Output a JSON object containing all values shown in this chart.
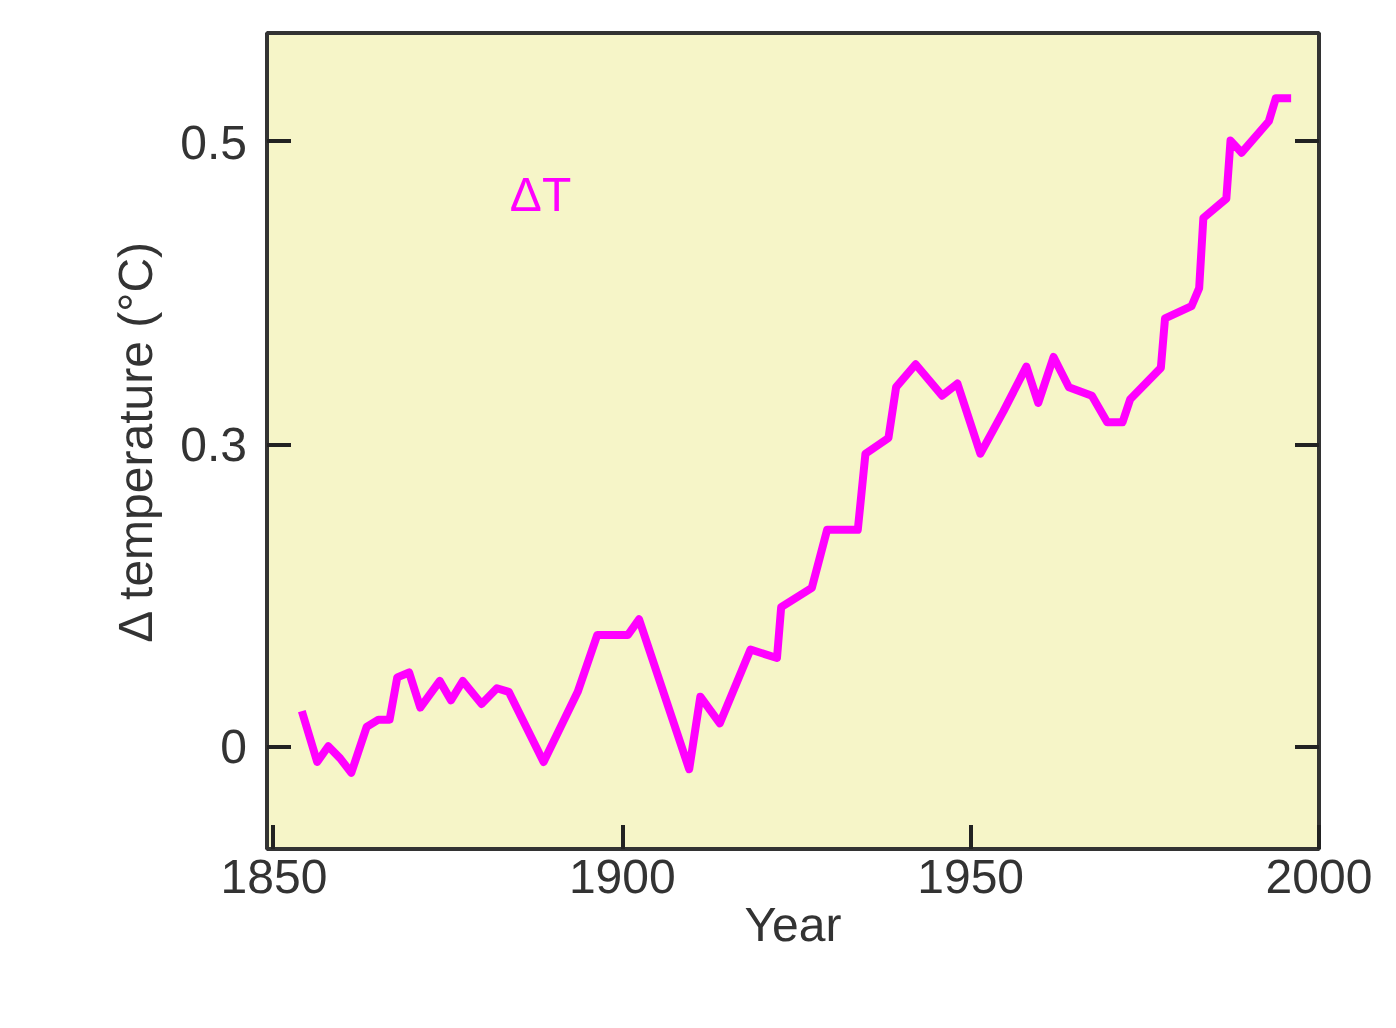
{
  "chart_data": {
    "type": "line",
    "xlabel": "Year",
    "ylabel": "Δ temperature (°C)",
    "xlim": [
      1849,
      2000
    ],
    "ylim": [
      -0.085,
      0.59
    ],
    "xticks": [
      1850,
      1900,
      1950,
      2000
    ],
    "yticks": [
      0,
      {
        "value": 0.25,
        "label": "0.3"
      },
      0.5
    ],
    "grid": false,
    "legend": false,
    "marker": "none",
    "line_style": "solid",
    "series": [
      {
        "name": "ΔT",
        "color": "#ff00ff",
        "x": [
          1854,
          1856.2,
          1857.8,
          1859.5,
          1861.1,
          1863.3,
          1865,
          1866.6,
          1867.7,
          1869.4,
          1871,
          1873.8,
          1875.4,
          1877.1,
          1879.8,
          1882,
          1883.7,
          1888.7,
          1893.6,
          1896.4,
          1900.8,
          1902.4,
          1909.6,
          1911.2,
          1914,
          1918.4,
          1922.2,
          1922.8,
          1927.2,
          1929.4,
          1933.8,
          1934.9,
          1938.2,
          1939.3,
          1942.1,
          1945.9,
          1948.1,
          1951.4,
          1954.7,
          1958,
          1959.7,
          1961.9,
          1964.1,
          1967.4,
          1969.6,
          1971.8,
          1972.9,
          1977.3,
          1977.9,
          1981.7,
          1982.8,
          1983.4,
          1986.7,
          1987.3,
          1988.9,
          1992.8,
          1993.8,
          1996
        ],
        "values": [
          0.029,
          -0.013,
          0,
          -0.01,
          -0.022,
          0.016,
          0.022,
          0.022,
          0.057,
          0.061,
          0.032,
          0.054,
          0.038,
          0.054,
          0.035,
          0.048,
          0.045,
          -0.013,
          0.045,
          0.092,
          0.092,
          0.105,
          -0.019,
          0.041,
          0.019,
          0.08,
          0.073,
          0.115,
          0.131,
          0.179,
          0.179,
          0.242,
          0.255,
          0.297,
          0.316,
          0.29,
          0.3,
          0.242,
          0.277,
          0.314,
          0.284,
          0.322,
          0.297,
          0.29,
          0.268,
          0.268,
          0.287,
          0.313,
          0.354,
          0.364,
          0.379,
          0.437,
          0.453,
          0.501,
          0.491,
          0.517,
          0.536,
          0.536
        ]
      }
    ]
  }
}
